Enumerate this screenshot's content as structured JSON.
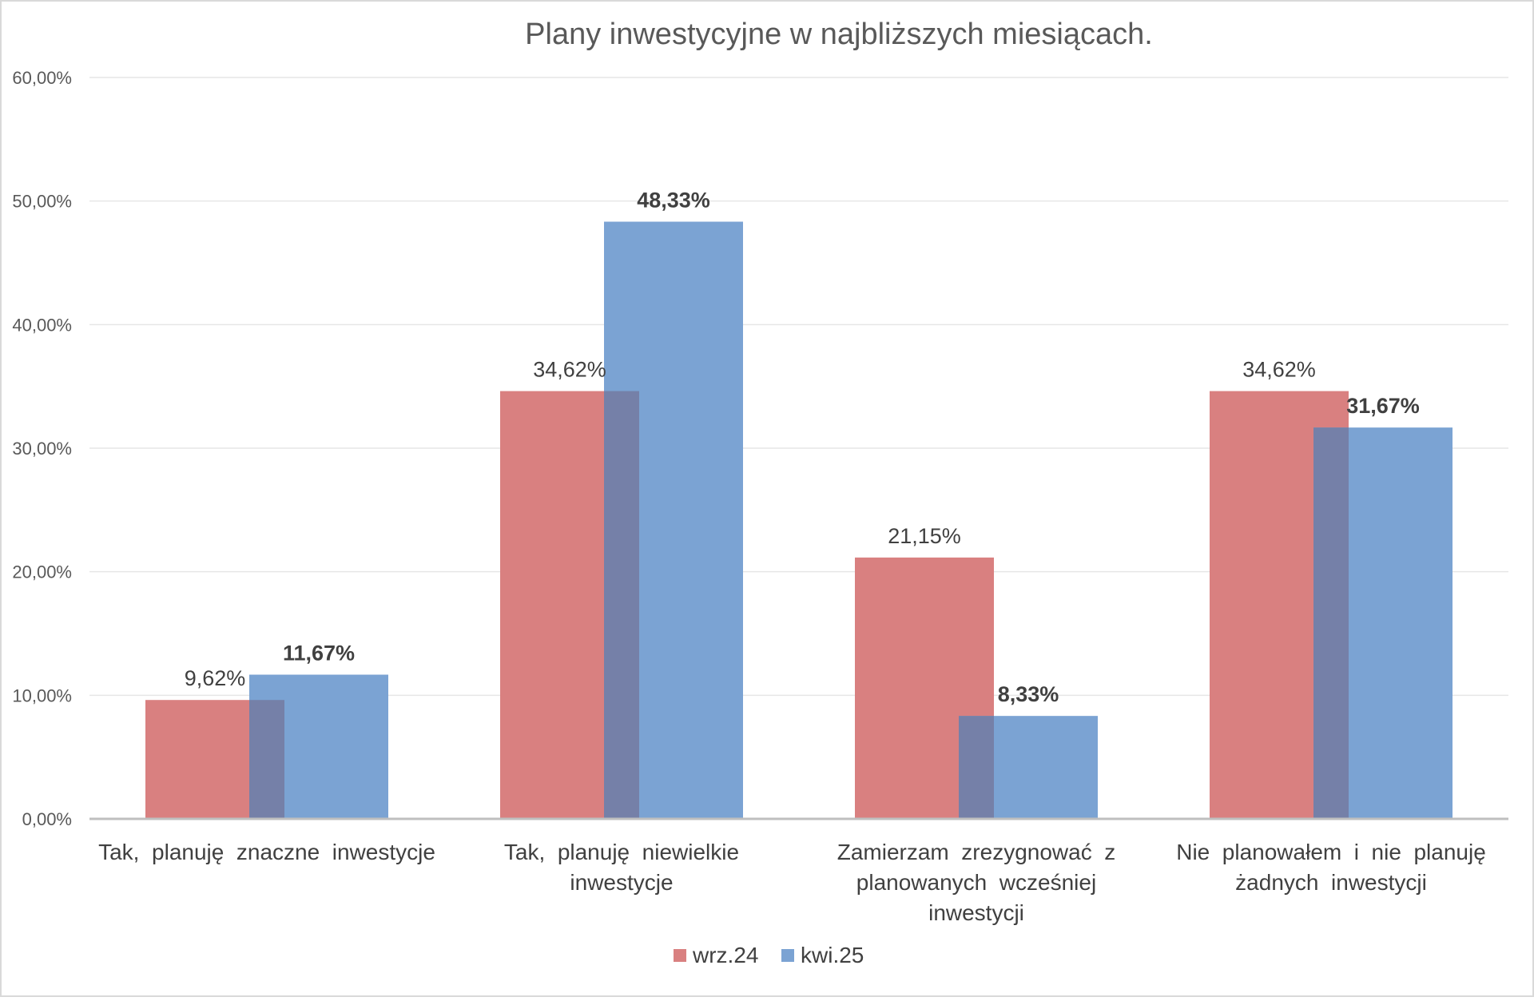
{
  "chart_data": {
    "type": "bar",
    "title": "Plany inwestycyjne w najbliższych miesiącach.",
    "xlabel": "",
    "ylabel": "",
    "ylim": [
      0,
      0.6
    ],
    "yticks": [
      "0,00%",
      "10,00%",
      "20,00%",
      "30,00%",
      "40,00%",
      "50,00%",
      "60,00%"
    ],
    "categories": [
      [
        "Tak,  planuję  znaczne  inwestycje"
      ],
      [
        "Tak,  planuję  niewielkie",
        "inwestycje"
      ],
      [
        "Zamierzam  zrezygnować  z",
        "planowanych  wcześniej",
        "inwestycji"
      ],
      [
        "Nie  planowałem  i  nie  planuję",
        "żadnych  inwestycji"
      ]
    ],
    "series": [
      {
        "name": "wrz.24",
        "color": "#d98080",
        "values": [
          0.0962,
          0.3462,
          0.2115,
          0.3462
        ],
        "labels": [
          "9,62%",
          "34,62%",
          "21,15%",
          "34,62%"
        ],
        "bold_labels": false
      },
      {
        "name": "kwi.25",
        "color": "#7ba3d3",
        "values": [
          0.1167,
          0.4833,
          0.0833,
          0.3167
        ],
        "labels": [
          "11,67%",
          "48,33%",
          "8,33%",
          "31,67%"
        ],
        "bold_labels": true
      }
    ],
    "overlap_color": "#7580a8",
    "grid": true,
    "legend_position": "bottom-center"
  }
}
